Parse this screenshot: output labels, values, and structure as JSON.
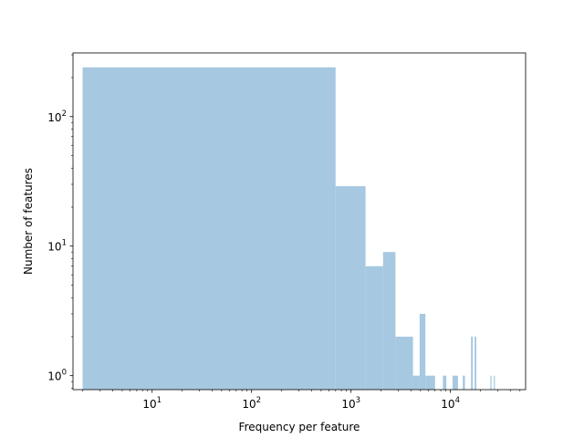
{
  "chart_data": {
    "type": "bar",
    "title": "",
    "xlabel": "Frequency per feature",
    "ylabel": "Number of features",
    "xscale": "log",
    "yscale": "log",
    "xlim": [
      1.6,
      57000
    ],
    "ylim": [
      0.78,
      310
    ],
    "grid": false,
    "bar_color": "#a6c8e0",
    "x_ticks": [
      {
        "value": 10,
        "base": "10",
        "exp": "1"
      },
      {
        "value": 100,
        "base": "10",
        "exp": "2"
      },
      {
        "value": 1000,
        "base": "10",
        "exp": "3"
      },
      {
        "value": 10000,
        "base": "10",
        "exp": "4"
      }
    ],
    "y_ticks": [
      {
        "value": 1,
        "base": "10",
        "exp": "0"
      },
      {
        "value": 10,
        "base": "10",
        "exp": "1"
      },
      {
        "value": 100,
        "base": "10",
        "exp": "2"
      }
    ],
    "bins": [
      {
        "x0": 2,
        "x1": 700,
        "count": 240
      },
      {
        "x0": 700,
        "x1": 1400,
        "count": 29
      },
      {
        "x0": 1400,
        "x1": 2100,
        "count": 7
      },
      {
        "x0": 2100,
        "x1": 2800,
        "count": 9
      },
      {
        "x0": 2800,
        "x1": 4200,
        "count": 2
      },
      {
        "x0": 4200,
        "x1": 4900,
        "count": 1
      },
      {
        "x0": 4900,
        "x1": 5600,
        "count": 3
      },
      {
        "x0": 5600,
        "x1": 7000,
        "count": 1
      },
      {
        "x0": 8400,
        "x1": 9100,
        "count": 1
      },
      {
        "x0": 10500,
        "x1": 11200,
        "count": 1
      },
      {
        "x0": 11200,
        "x1": 11900,
        "count": 1
      },
      {
        "x0": 13300,
        "x1": 14000,
        "count": 1
      },
      {
        "x0": 16100,
        "x1": 16800,
        "count": 2
      },
      {
        "x0": 17500,
        "x1": 18200,
        "count": 2
      },
      {
        "x0": 25200,
        "x1": 25900,
        "count": 1
      },
      {
        "x0": 27300,
        "x1": 28000,
        "count": 1
      }
    ]
  }
}
